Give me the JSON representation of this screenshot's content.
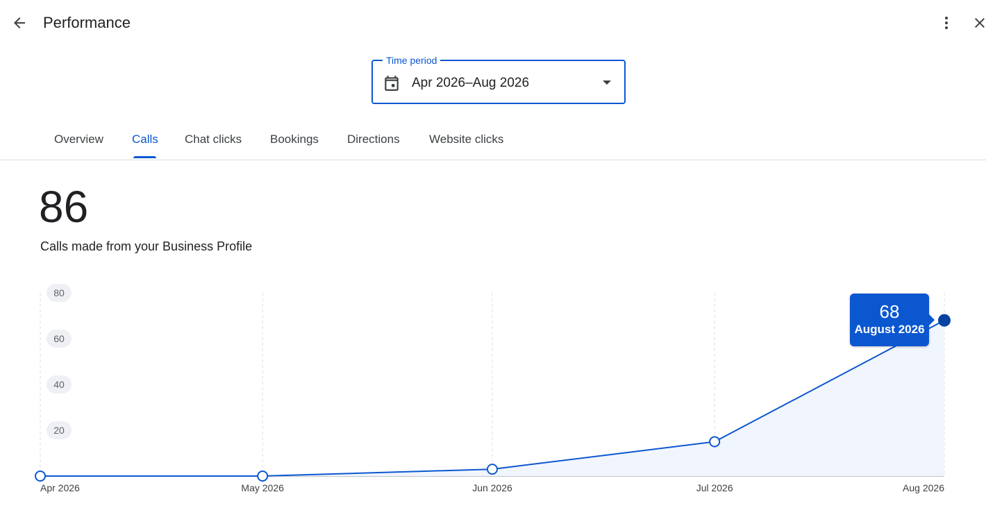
{
  "header": {
    "title": "Performance",
    "back_icon": "arrow-back-icon",
    "more_icon": "more-vert-icon",
    "close_icon": "close-icon"
  },
  "time_period": {
    "label": "Time period",
    "value": "Apr 2026–Aug 2026",
    "icon": "calendar-icon"
  },
  "tabs": [
    {
      "label": "Overview",
      "active": false
    },
    {
      "label": "Calls",
      "active": true
    },
    {
      "label": "Chat clicks",
      "active": false
    },
    {
      "label": "Bookings",
      "active": false
    },
    {
      "label": "Directions",
      "active": false
    },
    {
      "label": "Website clicks",
      "active": false
    }
  ],
  "metric": {
    "value": "86",
    "description": "Calls made from your Business Profile"
  },
  "tooltip": {
    "value": "68",
    "label": "August 2026"
  },
  "colors": {
    "accent": "#0b57d0",
    "area_fill": "#f1f5fd",
    "grid": "#dadce0"
  },
  "chart_data": {
    "type": "area",
    "categories": [
      "Apr 2026",
      "May 2026",
      "Jun 2026",
      "Jul 2026",
      "Aug 2026"
    ],
    "x_positions_days": [
      0,
      30,
      61,
      91,
      122
    ],
    "values": [
      0,
      0,
      3,
      15,
      68
    ],
    "y_ticks": [
      20,
      40,
      60,
      80
    ],
    "ylim": [
      0,
      80
    ],
    "grid": "vertical dashed",
    "highlighted_index": 4
  }
}
